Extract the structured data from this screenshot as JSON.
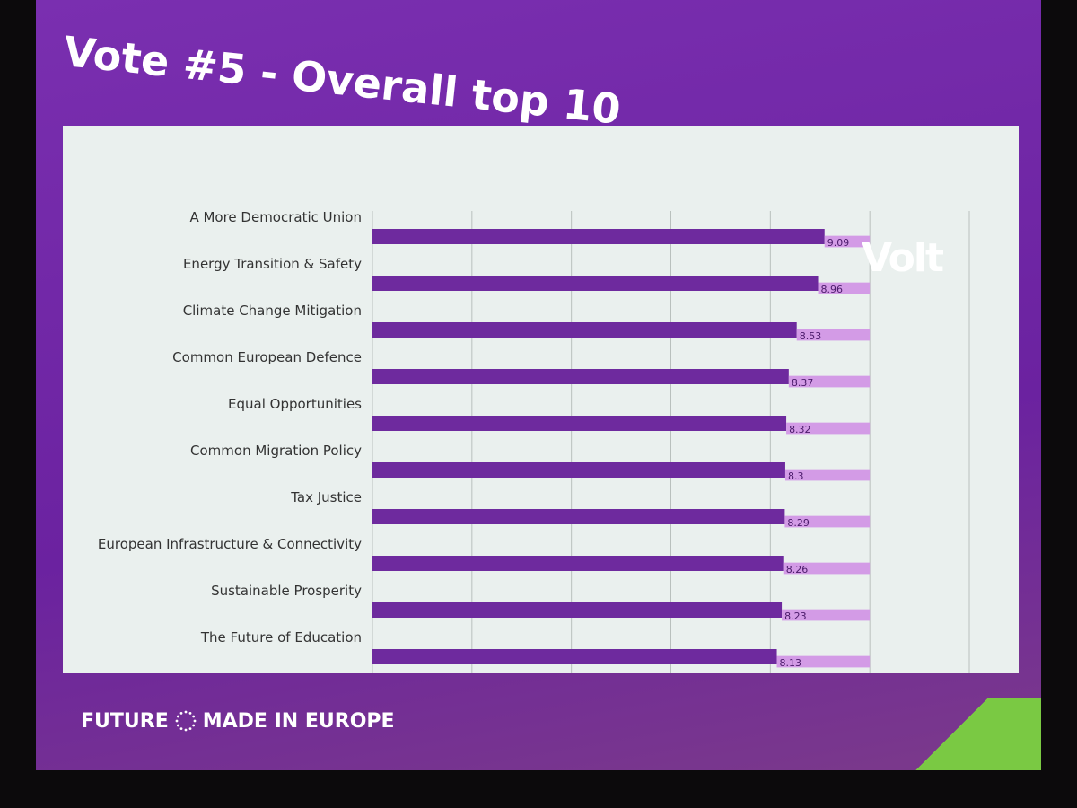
{
  "slide": {
    "title": "Vote #5 - Overall top 10",
    "logo": "Volt",
    "footer_left": "FUTURE",
    "footer_right": "MADE IN EUROPE",
    "footer_icon": "eu-stars-circle-icon"
  },
  "colors": {
    "bar": "#6e2a9e",
    "remainder": "#d39be6",
    "slide": "#6b22a0",
    "panel": "#eaf0ee"
  },
  "chart_data": {
    "type": "bar",
    "orientation": "horizontal",
    "stacked": true,
    "categories": [
      "A More Democratic Union",
      "Energy Transition & Safety",
      "Climate Change Mitigation",
      "Common European Defence",
      "Equal Opportunities",
      "Common Migration Policy",
      "Tax Justice",
      "European Infrastructure & Connectivity",
      "Sustainable Prosperity",
      "The Future of Education"
    ],
    "values": [
      9.09,
      8.96,
      8.53,
      8.37,
      8.32,
      8.3,
      8.29,
      8.26,
      8.23,
      8.13
    ],
    "value_labels": [
      "9.09",
      "8.96",
      "8.53",
      "8.37",
      "8.32",
      "8.3",
      "8.29",
      "8.26",
      "8.23",
      "8.13"
    ],
    "remainder_to": 10,
    "xlim": [
      0,
      12
    ],
    "grid_step": 2,
    "grid": true,
    "legend": "none"
  }
}
